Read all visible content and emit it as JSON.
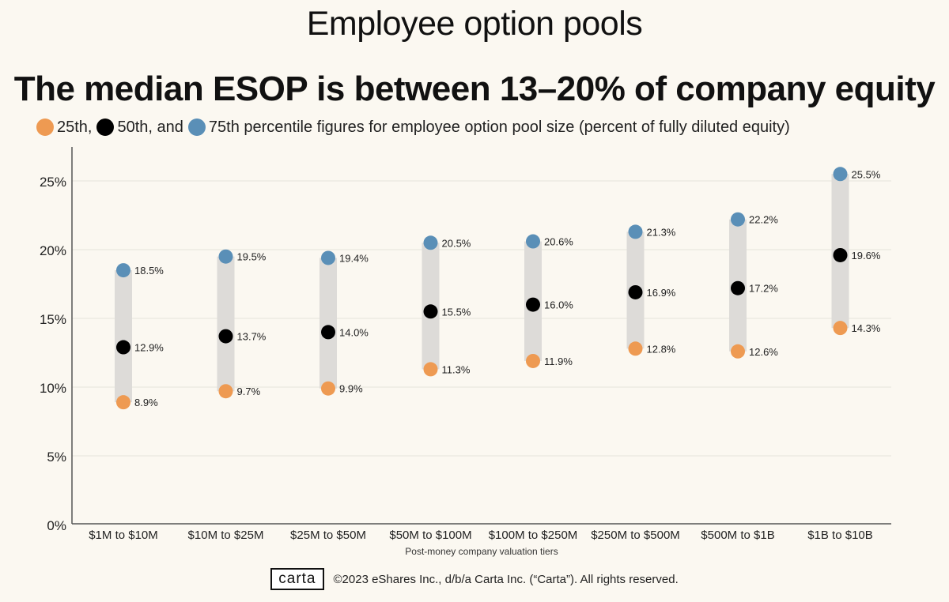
{
  "page_title": "Employee option pools",
  "headline": "The median ESOP is between 13–20% of company equity",
  "legend": {
    "p25_label": "25th,",
    "p50_label": "50th, and",
    "p75_label": "75th percentile figures for employee option pool size (percent of fully diluted equity)"
  },
  "colors": {
    "p25": "#ee9a52",
    "p50": "#000000",
    "p75": "#5a8fb7",
    "bar": "#dddbd8",
    "grid": "#e6e3dc",
    "axis": "#555555"
  },
  "chart_data": {
    "type": "range-dot",
    "title": "The median ESOP is between 13–20% of company equity",
    "xlabel": "Post-money company valuation tiers",
    "ylabel": "",
    "ylim": [
      0,
      27
    ],
    "yticks": [
      0,
      5,
      10,
      15,
      20,
      25
    ],
    "ytick_labels": [
      "0%",
      "5%",
      "10%",
      "15%",
      "20%",
      "25%"
    ],
    "categories": [
      "$1M to $10M",
      "$10M to $25M",
      "$25M to $50M",
      "$50M to $100M",
      "$100M to $250M",
      "$250M to $500M",
      "$500M to $1B",
      "$1B to $10B"
    ],
    "series": [
      {
        "name": "25th percentile",
        "key": "p25",
        "values": [
          8.9,
          9.7,
          9.9,
          11.3,
          11.9,
          12.8,
          12.6,
          14.3
        ],
        "labels": [
          "8.9%",
          "9.7%",
          "9.9%",
          "11.3%",
          "11.9%",
          "12.8%",
          "12.6%",
          "14.3%"
        ]
      },
      {
        "name": "50th percentile",
        "key": "p50",
        "values": [
          12.9,
          13.7,
          14.0,
          15.5,
          16.0,
          16.9,
          17.2,
          19.6
        ],
        "labels": [
          "12.9%",
          "13.7%",
          "14.0%",
          "15.5%",
          "16.0%",
          "16.9%",
          "17.2%",
          "19.6%"
        ]
      },
      {
        "name": "75th percentile",
        "key": "p75",
        "values": [
          18.5,
          19.5,
          19.4,
          20.5,
          20.6,
          21.3,
          22.2,
          25.5
        ],
        "labels": [
          "18.5%",
          "19.5%",
          "19.4%",
          "20.5%",
          "20.6%",
          "21.3%",
          "22.2%",
          "25.5%"
        ]
      }
    ]
  },
  "footer": {
    "logo": "carta",
    "copyright": "©2023 eShares Inc., d/b/a Carta Inc. (“Carta”). All rights reserved."
  }
}
